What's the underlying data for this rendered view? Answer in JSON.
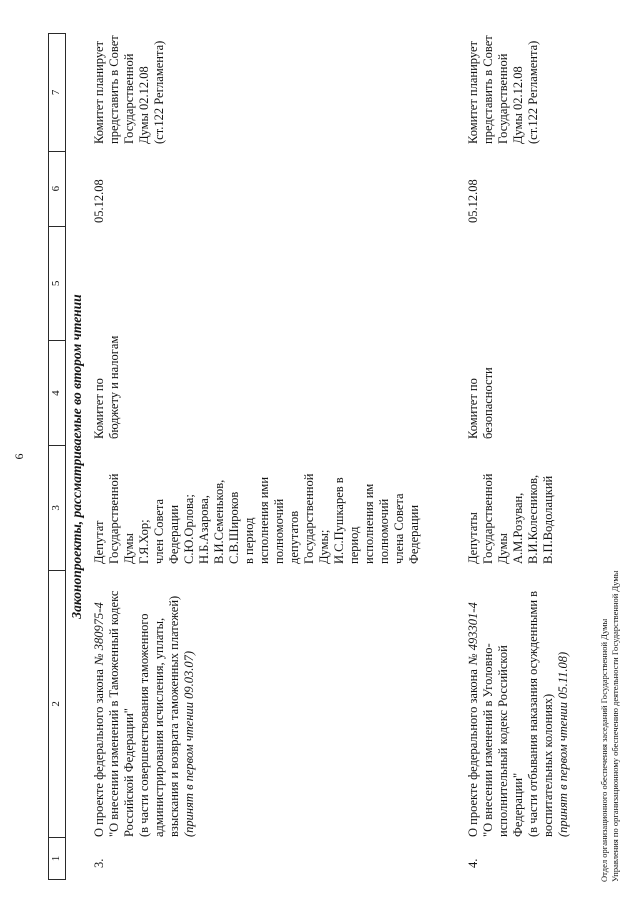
{
  "page_number": "6",
  "section_title": "Законопроекты, рассматриваемые во втором чтении",
  "table": {
    "column_headers": [
      "1",
      "2",
      "3",
      "4",
      "5",
      "6",
      "7"
    ],
    "rows": [
      {
        "num": "3.",
        "bill": {
          "intro": "О проекте федерального закона",
          "number": "№ 380975-4",
          "lines": [
            "\"О внесении изменений в Таможенный кодекс",
            "Российской Федерации\"",
            "(в части совершенствования таможенного",
            "администрирования исчисления, уплаты,",
            "взыскания и возврата таможенных платежей)"
          ],
          "note": "(принят в первом чтении 09.03.07)"
        },
        "initiators": [
          "Депутат",
          "Государственной",
          "Думы",
          "Г.Я.Хор;",
          "член Совета",
          "Федерации",
          "С.Ю.Орлова;",
          "Н.Б.Азарова,",
          "В.И.Семеньков,",
          "С.В.Широков",
          "в период",
          "исполнения ими",
          "полномочий",
          "депутатов",
          "Государственной",
          "Думы;",
          "И.С.Пушкарев в",
          "период",
          "исполнения им",
          "полномочий",
          "члена Совета",
          "Федерации"
        ],
        "committee": [
          "Комитет по",
          "бюджету и налогам"
        ],
        "date": "05.12.08",
        "plan": [
          "Комитет планирует",
          "представить в Совет",
          "Государственной",
          "Думы 02.12.08",
          "(ст.122 Регламента)"
        ]
      },
      {
        "num": "4.",
        "bill": {
          "intro": "О проекте федерального закона",
          "number": "№ 493301-4",
          "lines": [
            "\"О внесении изменений в Уголовно-",
            "исполнительный кодекс Российской",
            "Федерации\"",
            "(в части отбывания наказания осужденными в",
            "воспитательных колониях)"
          ],
          "note": "(принят в первом чтении 05.11.08)"
        },
        "initiators": [
          "Депутаты",
          "Государственной",
          "Думы",
          "А.М.Розуван,",
          "В.И.Колесников,",
          "В.П.Водолацкий"
        ],
        "committee": [
          "Комитет по",
          "безопасности"
        ],
        "date": "05.12.08",
        "plan": [
          "Комитет планирует",
          "представить в Совет",
          "Государственной",
          "Думы 02.12.08",
          "(ст.122 Регламента)"
        ]
      }
    ]
  },
  "footer": {
    "line1": "Отдел организационного обеспечения заседаний Государственной Думы",
    "line2": "Управления по организационному обеспечению деятельности Государственной Думы"
  }
}
